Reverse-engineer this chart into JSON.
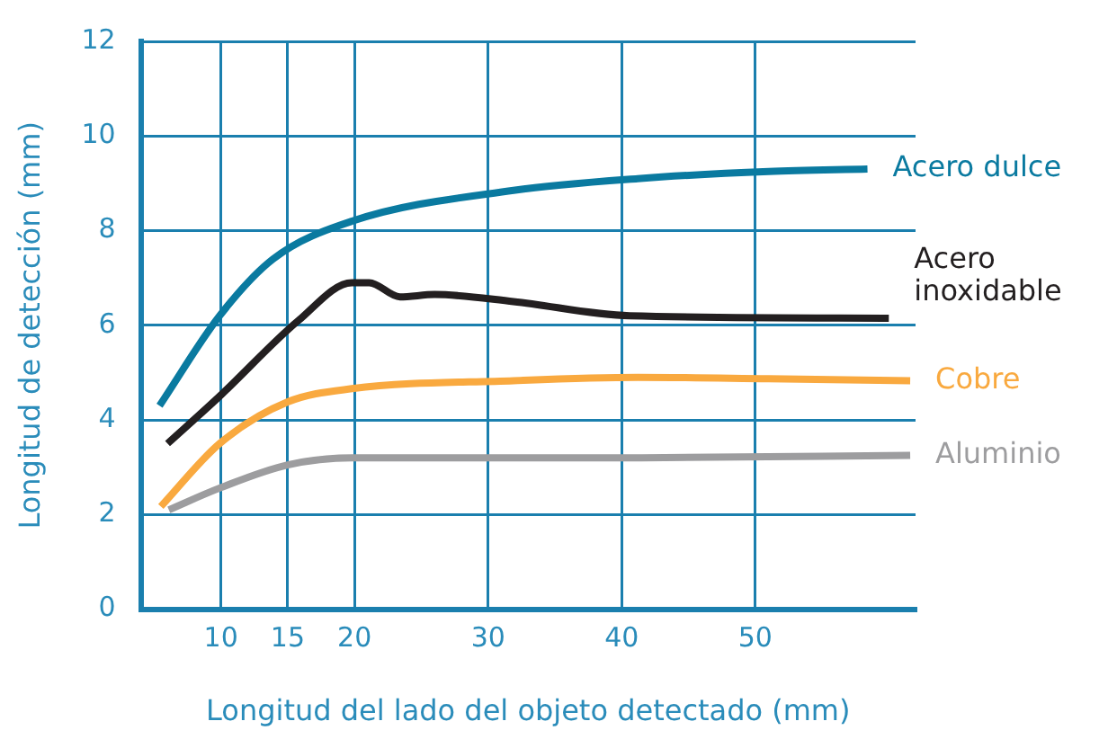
{
  "chart_data": {
    "type": "line",
    "xlabel": "Longitud del lado del objeto detectado (mm)",
    "ylabel": "Longitud de detección (mm)",
    "xlim": [
      4,
      62
    ],
    "xticks": [
      10,
      15,
      20,
      30,
      40,
      50
    ],
    "ylim": [
      0,
      12
    ],
    "yticks": [
      0,
      2,
      4,
      6,
      8,
      10,
      12
    ],
    "grid": true,
    "legend": false,
    "marker": "none",
    "line_style": "solid",
    "series": [
      {
        "name": "Acero dulce",
        "color": "#0a7aa0",
        "x": [
          5.4,
          9.9,
          13.9,
          19.8,
          31.9,
          41.2,
          51,
          58.4
        ],
        "values": [
          4.3,
          6.2,
          7.4,
          8.2,
          8.85,
          9.1,
          9.25,
          9.3
        ]
      },
      {
        "name": "Acero inoxidable",
        "color": "#231f20",
        "x": [
          6,
          9.9,
          15.8,
          19.8,
          21.1,
          23.4,
          26,
          31.9,
          40.6,
          60
        ],
        "values": [
          3.5,
          4.5,
          6.1,
          6.9,
          6.9,
          6.6,
          6.65,
          6.5,
          6.2,
          6.15
        ]
      },
      {
        "name": "Cobre",
        "color": "#f9a93f",
        "x": [
          5.5,
          9.9,
          15,
          19.8,
          31.9,
          41.2,
          51,
          61.6
        ],
        "values": [
          2.17,
          3.5,
          4.38,
          4.66,
          4.83,
          4.9,
          4.87,
          4.83
        ]
      },
      {
        "name": "Aluminio",
        "color": "#9d9d9f",
        "x": [
          6.1,
          9.9,
          15,
          19.8,
          41.2,
          61.6
        ],
        "values": [
          2.1,
          2.56,
          3.05,
          3.2,
          3.2,
          3.25
        ]
      }
    ]
  }
}
